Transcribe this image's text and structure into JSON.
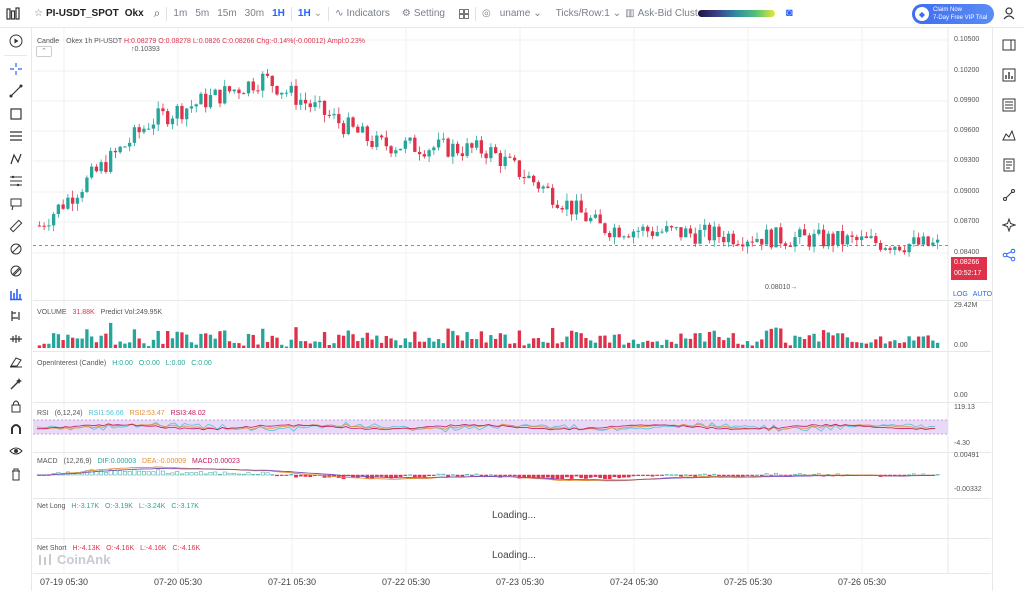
{
  "header": {
    "symbol": "PI-USDT_SPOT",
    "exchange": "Okx",
    "intervals": [
      "1m",
      "5m",
      "15m",
      "30m",
      "1H"
    ],
    "active_interval": "1H",
    "indicators_label": "Indicators",
    "setting_label": "Setting",
    "uname_label": "uname",
    "ticks_label": "Ticks/Row:1",
    "cluster_label": "Ask-Bid Cluster",
    "promo_line1": "Claim Now",
    "promo_line2": "7-Day Free VIP Trial"
  },
  "candle_pane": {
    "name": "Candle",
    "title": "Okex 1h PI-USDT",
    "high": "H:0.08279",
    "open": "O:0.08278",
    "low": "L:0.0826",
    "close": "C:0.08266",
    "change": "Chg:-0.14%(-0.00012)",
    "amplitude": "Ampl:0.23%",
    "high_marker": "0.10393",
    "low_marker": "0.08010",
    "price_ticks": [
      "0.10500",
      "0.10200",
      "0.09900",
      "0.09600",
      "0.09300",
      "0.09000",
      "0.08700",
      "0.08400"
    ],
    "current_price": "0.08266",
    "countdown": "00:52:17",
    "log_label": "LOG",
    "auto_label": "AUTO"
  },
  "volume_pane": {
    "name": "VOLUME",
    "value": "31.88K",
    "predict": "Predict Vol:249.95K",
    "ticks": [
      "29.42M",
      "0.00"
    ]
  },
  "oi_pane": {
    "name": "OpenInterest (Candle)",
    "h": "H:0.00",
    "o": "O:0.00",
    "l": "L:0.00",
    "c": "C:0.00",
    "ticks": [
      "0.00"
    ]
  },
  "rsi_pane": {
    "name": "RSI",
    "params": "(6,12,24)",
    "rsi1": "RSI1:56.66",
    "rsi2": "RSI2:53.47",
    "rsi3": "RSI3:48.02",
    "ticks": [
      "119.13",
      "-4.30"
    ]
  },
  "macd_pane": {
    "name": "MACD",
    "params": "(12,26,9)",
    "dif": "DIF:0.00003",
    "dea": "DEA:-0.00009",
    "macd": "MACD:0.00023",
    "ticks": [
      "0.00491",
      "-0.00332"
    ]
  },
  "net_long_pane": {
    "name": "Net Long",
    "h": "H:-3.17K",
    "o": "O:-3.19K",
    "l": "L:-3.24K",
    "c": "C:-3.17K",
    "loading": "Loading..."
  },
  "net_short_pane": {
    "name": "Net Short",
    "h": "H:-4.13K",
    "o": "O:-4.16K",
    "l": "L:-4.16K",
    "c": "C:-4.16K",
    "loading": "Loading..."
  },
  "watermark": "CoinAnk",
  "time_axis": [
    "07-19 05:30",
    "07-20 05:30",
    "07-21 05:30",
    "07-22 05:30",
    "07-23 05:30",
    "07-24 05:30",
    "07-25 05:30",
    "07-26 05:30"
  ],
  "chart_data": {
    "type": "candlestick",
    "x": [
      "07-19 05:30",
      "07-20 05:30",
      "07-21 05:30",
      "07-22 05:30",
      "07-23 05:30",
      "07-24 05:30",
      "07-25 05:30",
      "07-26 05:30",
      "07-26 23:30"
    ],
    "close": [
      0.0848,
      0.096,
      0.1005,
      0.0935,
      0.0928,
      0.0846,
      0.0838,
      0.0833,
      0.08266
    ],
    "ylim": [
      0.079,
      0.105
    ],
    "colors": {
      "up": "#26a69a",
      "down": "#e0314b",
      "rsi_band": "#ead8f7",
      "dif": "#e3913a",
      "dea": "#7c51c0"
    }
  }
}
